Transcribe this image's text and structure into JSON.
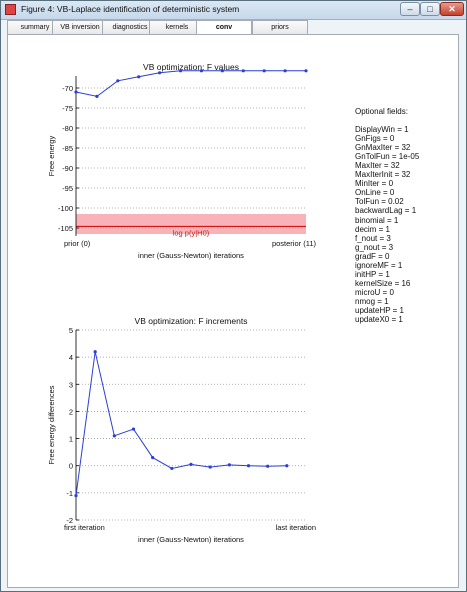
{
  "window": {
    "title": "Figure 4: VB-Laplace identification of deterministic system",
    "controls": {
      "minimize": "–",
      "maximize": "□",
      "close": "✕"
    }
  },
  "tabs": [
    {
      "label": "summary",
      "active": false
    },
    {
      "label": "VB inversion",
      "active": false
    },
    {
      "label": "diagnostics",
      "active": false
    },
    {
      "label": "kernels",
      "active": false
    },
    {
      "label": "conv",
      "active": true
    },
    {
      "label": "priors",
      "active": false
    }
  ],
  "optional_fields": {
    "header": "Optional fields:",
    "items": [
      "DisplayWin = 1",
      "GnFigs = 0",
      "GnMaxIter = 32",
      "GnTolFun = 1e-05",
      "MaxIter = 32",
      "MaxIterInit = 32",
      "MinIter = 0",
      "OnLine = 0",
      "TolFun = 0.02",
      "backwardLag = 1",
      "binomial = 1",
      "decim = 1",
      "f_nout = 3",
      "g_nout = 3",
      "gradF = 0",
      "ignoreMF = 1",
      "initHP = 1",
      "kernelSize = 16",
      "microU = 0",
      "nmog = 1",
      "updateHP = 1",
      "updateX0 = 1"
    ]
  },
  "colors": {
    "series": "#2b3fd6",
    "band_fill": "#f7b3b8",
    "band_line": "#cc0000",
    "band_text": "#cc2222"
  },
  "chart_data": [
    {
      "type": "line",
      "title": "VB optimization: F values",
      "xlabel": "inner (Gauss-Newton) iterations",
      "ylabel": "Free energy",
      "x_tick_labels": [
        "prior (0)",
        "posterior (11)"
      ],
      "xlim": [
        0,
        11
      ],
      "ylim": [
        -107,
        -67
      ],
      "yticks": [
        -70,
        -75,
        -80,
        -85,
        -90,
        -95,
        -100,
        -105
      ],
      "grid": "horizontal dotted",
      "x": [
        0,
        1,
        2,
        3,
        4,
        5,
        6,
        7,
        8,
        9,
        10,
        11
      ],
      "series": [
        {
          "values": [
            -71.0,
            -72.1,
            -68.2,
            -67.2,
            -66.2,
            -65.7,
            -65.7,
            -65.7,
            -65.7,
            -65.7,
            -65.7,
            -65.7
          ]
        }
      ],
      "band": {
        "label": "log p(y|H0)",
        "center": -104.6,
        "low": -106.5,
        "high": -101.5
      }
    },
    {
      "type": "line",
      "title": "VB optimization: F increments",
      "xlabel": "inner (Gauss-Newton) iterations",
      "ylabel": "Free energy differences",
      "x_tick_labels": [
        "first iteration",
        "last iteration"
      ],
      "xlim": [
        1,
        13
      ],
      "ylim": [
        -2,
        5
      ],
      "yticks": [
        5,
        4,
        3,
        2,
        1,
        0,
        -1,
        -2
      ],
      "grid": "horizontal dotted",
      "x": [
        1,
        2,
        3,
        4,
        5,
        6,
        7,
        8,
        9,
        10,
        11,
        12
      ],
      "series": [
        {
          "values": [
            -1.1,
            4.2,
            1.1,
            1.35,
            0.3,
            -0.1,
            0.05,
            -0.05,
            0.03,
            0.0,
            -0.02,
            0.0
          ]
        }
      ]
    }
  ]
}
